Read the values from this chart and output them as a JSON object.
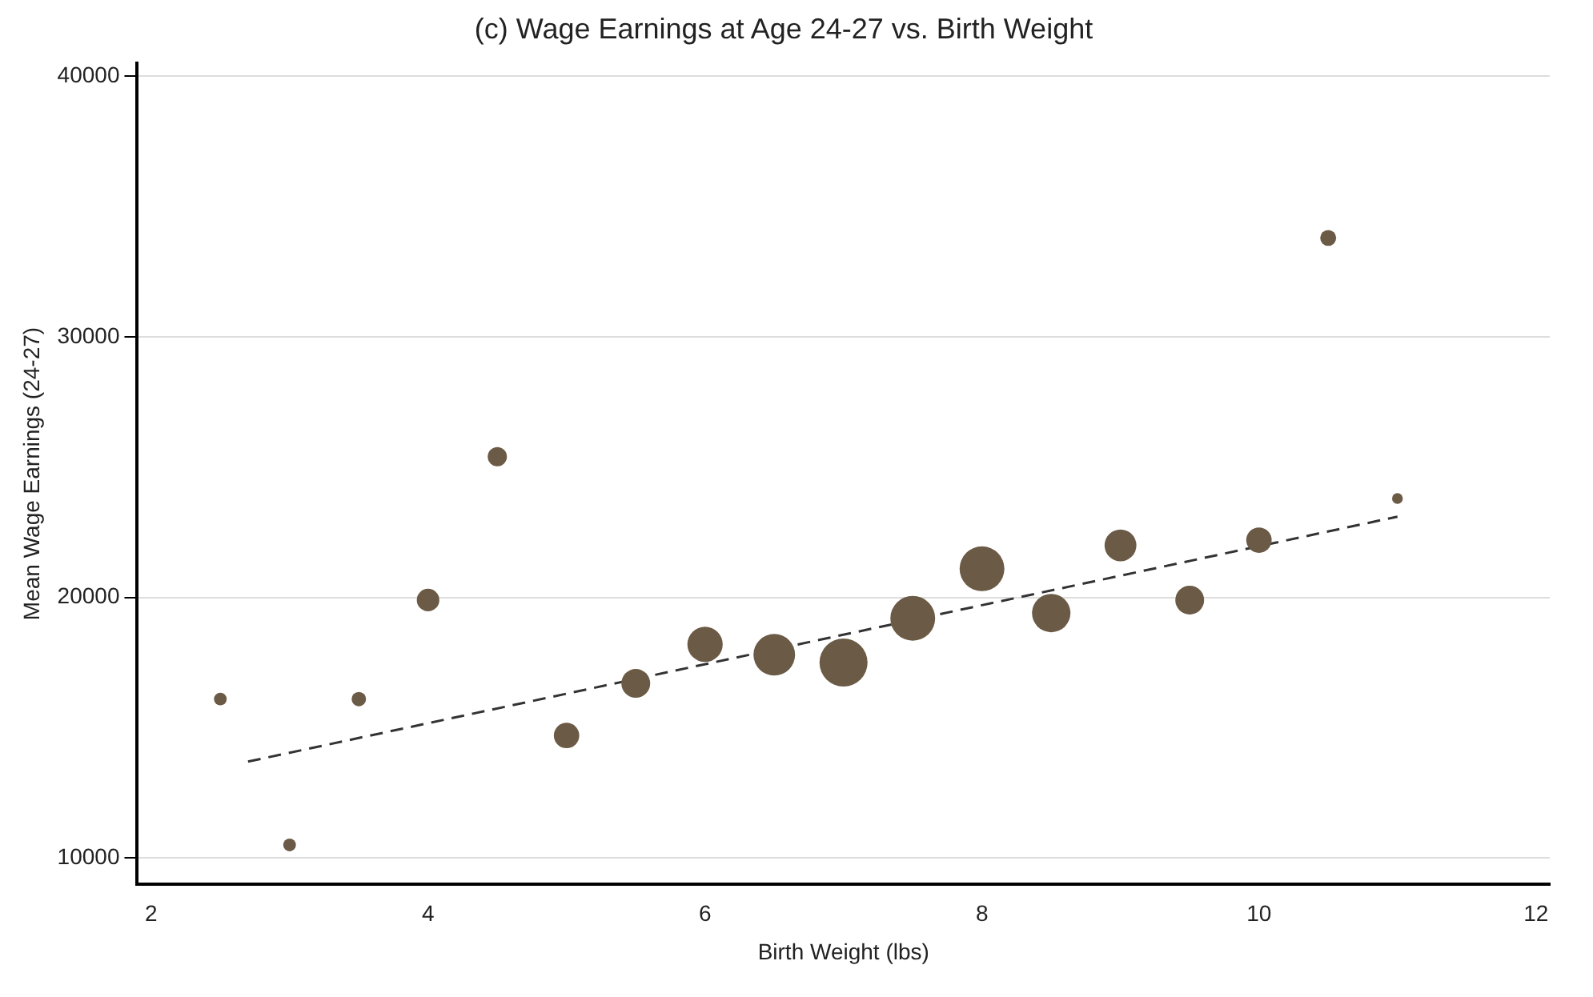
{
  "chart_data": {
    "type": "bubble",
    "title": "(c) Wage Earnings at Age 24-27 vs. Birth Weight",
    "xlabel": "Birth Weight (lbs)",
    "ylabel": "Mean Wage Earnings (24-27)",
    "xlim": [
      1.9,
      12.1
    ],
    "xticks": [
      2,
      4,
      6,
      8,
      10,
      12
    ],
    "ylim": [
      9000,
      40500
    ],
    "yticks": [
      10000,
      20000,
      30000,
      40000
    ],
    "grid": "y",
    "legend": false,
    "series": [
      {
        "color": "#6b5a45",
        "x": [
          2.5,
          3.0,
          3.5,
          4.0,
          4.5,
          5.0,
          5.5,
          6.0,
          6.5,
          7.0,
          7.5,
          8.0,
          8.5,
          9.0,
          9.5,
          10.0,
          10.5,
          11.0
        ],
        "values": [
          16100,
          10500,
          16100,
          19900,
          25400,
          14700,
          16700,
          18200,
          17800,
          17500,
          19200,
          21100,
          19400,
          22000,
          19900,
          22200,
          33800,
          23800
        ],
        "sizes": [
          0.07,
          0.07,
          0.09,
          0.22,
          0.16,
          0.28,
          0.36,
          0.54,
          0.75,
          1,
          0.87,
          0.87,
          0.64,
          0.44,
          0.36,
          0.28,
          0.11,
          0.05
        ]
      },
      {
        "type": "line",
        "color": "#333333",
        "line_style": "dashed",
        "marker": "none",
        "x": [
          2.7,
          11.0
        ],
        "values": [
          13700,
          23100
        ]
      }
    ]
  }
}
